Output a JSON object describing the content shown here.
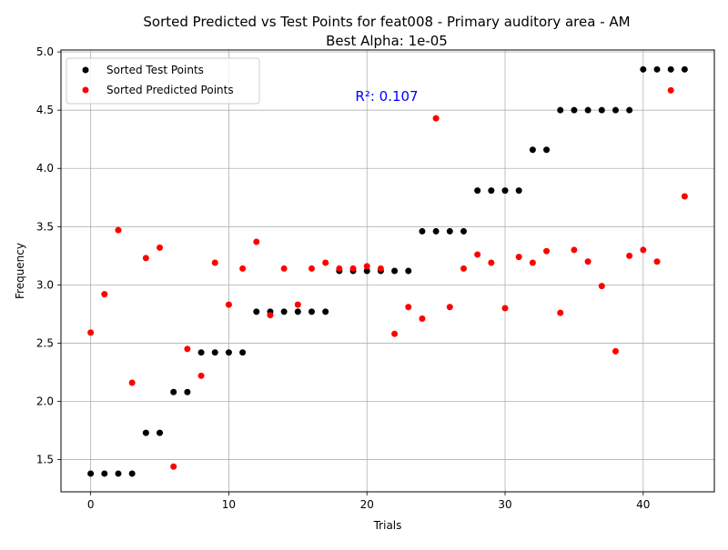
{
  "chart_data": {
    "type": "scatter",
    "title": "Sorted Predicted vs Test Points for feat008 - Primary auditory area - AM",
    "subtitle": "Best Alpha: 1e-05",
    "xlabel": "Trials",
    "ylabel": "Frequency",
    "xlim": [
      -2.15,
      45.15
    ],
    "ylim": [
      1.2235,
      5.0165
    ],
    "x_ticks": [
      0,
      10,
      20,
      30,
      40
    ],
    "y_ticks": [
      1.5,
      2.0,
      2.5,
      3.0,
      3.5,
      4.0,
      4.5,
      5.0
    ],
    "x_tick_labels": [
      "0",
      "10",
      "20",
      "30",
      "40"
    ],
    "y_tick_labels": [
      "1.5",
      "2.0",
      "2.5",
      "3.0",
      "3.5",
      "4.0",
      "4.5",
      "5.0"
    ],
    "grid": true,
    "legend_position": "top-left",
    "annotation": {
      "text": "R²: 0.107",
      "x": 21.5,
      "y": 4.62,
      "color": "#0000ff"
    },
    "series": [
      {
        "name": "Sorted Test Points",
        "color": "#000000",
        "x": [
          0,
          1,
          2,
          3,
          4,
          5,
          6,
          7,
          8,
          9,
          10,
          11,
          12,
          13,
          14,
          15,
          16,
          17,
          18,
          19,
          20,
          21,
          22,
          23,
          24,
          25,
          26,
          27,
          28,
          29,
          30,
          31,
          32,
          33,
          34,
          35,
          36,
          37,
          38,
          39,
          40,
          41,
          42,
          43
        ],
        "y": [
          1.38,
          1.38,
          1.38,
          1.38,
          1.73,
          1.73,
          2.08,
          2.08,
          2.42,
          2.42,
          2.42,
          2.42,
          2.77,
          2.77,
          2.77,
          2.77,
          2.77,
          2.77,
          3.12,
          3.12,
          3.12,
          3.12,
          3.12,
          3.12,
          3.46,
          3.46,
          3.46,
          3.46,
          3.81,
          3.81,
          3.81,
          3.81,
          4.16,
          4.16,
          4.5,
          4.5,
          4.5,
          4.5,
          4.5,
          4.5,
          4.85,
          4.85,
          4.85,
          4.85
        ]
      },
      {
        "name": "Sorted Predicted Points",
        "color": "#ff0000",
        "x": [
          0,
          1,
          2,
          3,
          4,
          5,
          6,
          7,
          8,
          9,
          10,
          11,
          12,
          13,
          14,
          15,
          16,
          17,
          18,
          19,
          20,
          21,
          22,
          23,
          24,
          25,
          26,
          27,
          28,
          29,
          30,
          31,
          32,
          33,
          34,
          35,
          36,
          37,
          38,
          39,
          40,
          41,
          42,
          43
        ],
        "y": [
          2.59,
          2.92,
          3.47,
          2.16,
          3.23,
          3.32,
          1.44,
          2.45,
          2.22,
          3.19,
          2.83,
          3.14,
          3.37,
          2.74,
          3.14,
          2.83,
          3.14,
          3.19,
          3.14,
          3.14,
          3.16,
          3.14,
          2.58,
          2.81,
          2.71,
          4.43,
          2.81,
          3.14,
          3.26,
          3.19,
          2.8,
          3.24,
          3.19,
          3.29,
          2.76,
          3.3,
          3.2,
          2.99,
          2.43,
          3.25,
          3.3,
          3.2,
          4.67,
          3.76
        ]
      }
    ]
  }
}
